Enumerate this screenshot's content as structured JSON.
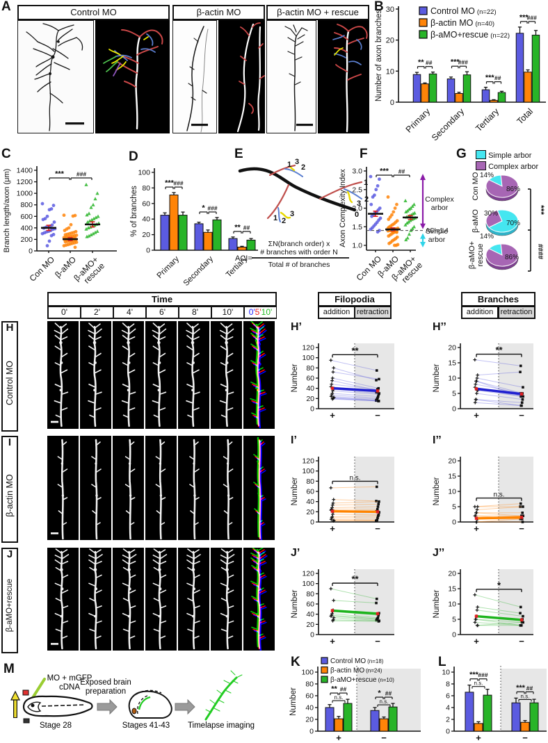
{
  "letters": {
    "A": "A",
    "B": "B",
    "C": "C",
    "D": "D",
    "E": "E",
    "F": "F",
    "G": "G",
    "K": "K",
    "L": "L",
    "M": "M"
  },
  "plot_labels": {
    "hp": "H’",
    "hpp": "H’’",
    "ip": "I’",
    "ipp": "I’’",
    "jp": "J’",
    "jpp": "J’’"
  },
  "colors": {
    "control": "#5b5be0",
    "bactin": "#ff8408",
    "rescue": "#28b428",
    "control_line": "#1f1fd0",
    "bactin_line": "#ff8400",
    "rescue_line": "#1eb41e",
    "simple_arbor": "#45e6f0",
    "complex_arbor": "#a766b4",
    "simple_side": "#2fb3c9",
    "complex_side": "#7d4090",
    "error_red": "#e02020",
    "time_blue": "#2222ff",
    "time_red": "#ee2222",
    "time_green": "#22bb22"
  },
  "panelA": {
    "groups": [
      {
        "title": "Control MO"
      },
      {
        "title": "β-actin MO"
      },
      {
        "title": "β-actin MO + rescue"
      }
    ]
  },
  "panelE": {
    "order_labels": [
      "0",
      "1",
      "2",
      "3"
    ],
    "formula_prefix": "ACI=",
    "formula_num1": "ΣN(branch order) x",
    "formula_num2": "# branches with order N",
    "formula_den": "Total # of branches"
  },
  "panelG": {
    "legend_simple": "Simple arbor",
    "legend_complex": "Complex arbor"
  },
  "timelapse": {
    "header": "Time",
    "times": [
      "0'",
      "2'",
      "4'",
      "6'",
      "8'",
      "10'"
    ],
    "composite": [
      {
        "t": "0'",
        "color": "#2222ff"
      },
      {
        "t": "5'",
        "color": "#ee2222"
      },
      {
        "t": "10'",
        "color": "#22bb22"
      }
    ],
    "filopodia": {
      "title": "Filopodia",
      "cols": [
        "addition",
        "retraction"
      ]
    },
    "branches": {
      "title": "Branches",
      "cols": [
        "addition",
        "retraction"
      ]
    },
    "rows": [
      {
        "letter": "H",
        "label": "Control MO"
      },
      {
        "letter": "I",
        "label": "β-actin MO"
      },
      {
        "letter": "J",
        "label": "β-aMO+rescue"
      }
    ]
  },
  "panelM": {
    "inj1": "MO + mGFP",
    "inj2": "cDNA",
    "stage1": "Stage 28",
    "arrow1a": "Exposed brain",
    "arrow1b": "preparation",
    "stage2": "Stages 41-43",
    "step3": "Timelapse imaging"
  },
  "chart_data": [
    {
      "id": "B",
      "type": "bar",
      "ylabel": "Number of axon branches",
      "ylim": [
        0,
        30
      ],
      "yticks": [
        0,
        10,
        20,
        30
      ],
      "categories": [
        "Primary",
        "Secondary",
        "Tertiary",
        "Total"
      ],
      "legend": [
        {
          "name": "Control MO",
          "n": "(n=22)"
        },
        {
          "name": "β-actin MO",
          "n": "(n=40)"
        },
        {
          "name": "β-aMO+rescue",
          "n": "(n=22)"
        }
      ],
      "series": [
        {
          "name": "Control MO",
          "values": [
            8.9,
            7.5,
            4.0,
            22.2
          ],
          "errors": [
            0.7,
            0.6,
            0.8,
            2.0
          ]
        },
        {
          "name": "β-actin MO",
          "values": [
            5.9,
            2.8,
            0.6,
            9.7
          ],
          "errors": [
            0.3,
            0.4,
            0.2,
            0.7
          ]
        },
        {
          "name": "β-aMO+rescue",
          "values": [
            9.1,
            8.8,
            3.1,
            21.6
          ],
          "errors": [
            0.6,
            1.0,
            0.4,
            1.5
          ]
        }
      ],
      "significance": [
        {
          "star": "**",
          "hash": "##"
        },
        {
          "star": "***",
          "hash": "###"
        },
        {
          "star": "***",
          "hash": "##"
        },
        {
          "star": "***",
          "hash": "###"
        }
      ]
    },
    {
      "id": "C",
      "type": "scatter",
      "ylabel": "Branch length/axon (μm)",
      "ylim": [
        0,
        1400
      ],
      "ytick_step": 200,
      "categories": [
        [
          "Con MO"
        ],
        [
          "β-aMO"
        ],
        [
          "β-aMO+",
          "rescue"
        ]
      ],
      "means": [
        400,
        205,
        460
      ],
      "sems": [
        45,
        25,
        45
      ],
      "significance": {
        "star": "***",
        "hash": "###"
      },
      "points": [
        [
          820,
          790,
          730,
          715,
          600,
          560,
          545,
          500,
          450,
          430,
          420,
          410,
          395,
          385,
          375,
          355,
          340,
          330,
          315,
          300,
          285,
          265,
          170,
          90
        ],
        [
          620,
          615,
          605,
          455,
          400,
          380,
          355,
          335,
          320,
          310,
          300,
          290,
          280,
          272,
          265,
          258,
          250,
          244,
          238,
          232,
          226,
          220,
          214,
          208,
          202,
          196,
          190,
          184,
          178,
          172,
          165,
          158,
          150,
          140,
          130,
          120,
          110,
          100,
          90,
          62
        ],
        [
          1150,
          1000,
          905,
          800,
          755,
          650,
          625,
          600,
          580,
          560,
          540,
          520,
          500,
          480,
          462,
          445,
          430,
          415,
          400,
          380,
          340,
          320,
          300,
          280,
          260,
          248
        ]
      ]
    },
    {
      "id": "D",
      "type": "bar",
      "ylabel": "% of branches",
      "ylim": [
        0,
        100
      ],
      "yticks": [
        0,
        20,
        40,
        60,
        80,
        100
      ],
      "categories": [
        "Primary",
        "Secondary",
        "Tertiary"
      ],
      "series": [
        {
          "name": "Control MO",
          "values": [
            45,
            34,
            15
          ],
          "errors": [
            3,
            2,
            2
          ]
        },
        {
          "name": "β-actin MO",
          "values": [
            71,
            23,
            4
          ],
          "errors": [
            3,
            3,
            1
          ]
        },
        {
          "name": "β-aMO+rescue",
          "values": [
            45,
            39,
            13
          ],
          "errors": [
            4,
            3,
            2
          ]
        }
      ],
      "significance": [
        {
          "star": "***",
          "hash": "###"
        },
        {
          "star": "*",
          "hash": "###"
        },
        {
          "star": "**",
          "hash": "##"
        }
      ]
    },
    {
      "id": "F",
      "type": "scatter",
      "ylabel": "Axon Complexity Index",
      "ylim": [
        1.0,
        3.0
      ],
      "yticks": [
        1.0,
        1.5,
        2.0,
        2.5,
        3.0
      ],
      "categories": [
        [
          "Con MO"
        ],
        [
          "β-aMO"
        ],
        [
          "β-aMO+",
          "rescue"
        ]
      ],
      "means": [
        1.85,
        1.43,
        1.75
      ],
      "sems": [
        0.07,
        0.04,
        0.05
      ],
      "significance": {
        "star": "***",
        "hash": "##"
      },
      "dashed_line": 1.4,
      "annotations": {
        "complex1": "Complex",
        "complex2": "arbor",
        "aci": "ACI=1.4",
        "simple1": "Simple",
        "simple2": "arbor"
      },
      "points": [
        [
          2.85,
          2.78,
          2.6,
          2.5,
          2.35,
          2.3,
          2.1,
          2.0,
          1.95,
          1.9,
          1.87,
          1.82,
          1.78,
          1.73,
          1.68,
          1.62,
          1.57,
          1.52,
          1.47,
          1.43,
          1.4,
          1.36
        ],
        [
          2.3,
          2.1,
          2.0,
          1.9,
          1.82,
          1.76,
          1.7,
          1.66,
          1.62,
          1.58,
          1.55,
          1.52,
          1.49,
          1.46,
          1.44,
          1.42,
          1.41,
          1.4,
          1.4,
          1.39,
          1.38,
          1.36,
          1.34,
          1.31,
          1.28,
          1.25,
          1.22,
          1.18,
          1.15,
          1.12,
          1.08,
          1.05,
          1.02,
          1.0,
          1.0,
          1.38,
          1.42,
          1.44,
          1.46,
          1.35
        ],
        [
          2.2,
          2.1,
          2.05,
          2.0,
          1.97,
          1.93,
          1.9,
          1.87,
          1.85,
          1.82,
          1.8,
          1.78,
          1.76,
          1.74,
          1.72,
          1.7,
          1.67,
          1.63,
          1.6,
          1.55,
          1.5,
          1.45,
          1.4,
          1.3,
          1.2,
          1.15
        ]
      ]
    },
    {
      "id": "G",
      "type": "pie",
      "pies": [
        {
          "label_lines": [
            "Con MO"
          ],
          "simple_pct": 14,
          "complex_pct": 86
        },
        {
          "label_lines": [
            "β-aMO"
          ],
          "simple_pct": 70,
          "complex_pct": 30
        },
        {
          "label_lines": [
            "β-aMO+",
            "rescue"
          ],
          "simple_pct": 14,
          "complex_pct": 86
        }
      ],
      "pct_labels": [
        {
          "a": "14%",
          "b": "86%"
        },
        {
          "a": "30%",
          "b": "70%"
        },
        {
          "a": "14%",
          "b": "86%"
        }
      ],
      "significance_top": "***",
      "significance_bottom": "####"
    },
    {
      "id": "H1",
      "type": "paired-line",
      "ylabel": "Number",
      "ylim": [
        0,
        120
      ],
      "ytick_step": 20,
      "xlabels": [
        "+",
        "−"
      ],
      "sig": "**",
      "color": "control",
      "pairs": [
        [
          95,
          75
        ],
        [
          80,
          56
        ],
        [
          72,
          58
        ],
        [
          60,
          40
        ],
        [
          55,
          36
        ],
        [
          48,
          38
        ],
        [
          43,
          34
        ],
        [
          40,
          32
        ],
        [
          38,
          30
        ],
        [
          35,
          28
        ],
        [
          30,
          24
        ],
        [
          27,
          21
        ],
        [
          24,
          19
        ],
        [
          22,
          17
        ],
        [
          21,
          16
        ],
        [
          20,
          15
        ],
        [
          19,
          15
        ]
      ],
      "mean": [
        40,
        35
      ]
    },
    {
      "id": "H2",
      "type": "paired-line",
      "ylabel": "Number",
      "ylim": [
        0,
        20
      ],
      "ytick_step": 5,
      "xlabels": [
        "+",
        "−"
      ],
      "sig": "**",
      "color": "control",
      "pairs": [
        [
          16,
          14
        ],
        [
          11,
          12
        ],
        [
          10,
          7
        ],
        [
          9,
          5
        ],
        [
          9,
          4
        ],
        [
          8,
          5
        ],
        [
          7,
          4
        ],
        [
          6,
          5
        ],
        [
          6,
          4
        ],
        [
          5,
          3
        ],
        [
          3,
          2
        ],
        [
          3,
          1
        ],
        [
          2,
          1
        ]
      ],
      "mean": [
        6.5,
        4.8
      ]
    },
    {
      "id": "I1",
      "type": "paired-line",
      "ylabel": "Number",
      "ylim": [
        0,
        120
      ],
      "ytick_step": 20,
      "xlabels": [
        "+",
        "−"
      ],
      "sig": "n.s.",
      "color": "bactin",
      "pairs": [
        [
          67,
          69
        ],
        [
          44,
          41
        ],
        [
          37,
          40
        ],
        [
          33,
          35
        ],
        [
          28,
          30
        ],
        [
          25,
          25
        ],
        [
          23,
          20
        ],
        [
          21,
          21
        ],
        [
          20,
          19
        ],
        [
          15,
          14
        ],
        [
          10,
          12
        ],
        [
          8,
          8
        ],
        [
          5,
          4
        ],
        [
          3,
          3
        ],
        [
          2,
          2
        ]
      ],
      "mean": [
        21,
        20
      ]
    },
    {
      "id": "I2",
      "type": "paired-line",
      "ylabel": "Number",
      "ylim": [
        0,
        20
      ],
      "ytick_step": 5,
      "xlabels": [
        "+",
        "−"
      ],
      "sig": "n.s.",
      "color": "bactin",
      "pairs": [
        [
          5,
          6
        ],
        [
          5,
          5
        ],
        [
          4,
          5
        ],
        [
          3,
          3
        ],
        [
          3,
          2
        ],
        [
          2,
          2
        ],
        [
          2,
          1
        ],
        [
          1,
          1
        ],
        [
          1,
          2
        ],
        [
          0,
          0
        ],
        [
          0,
          1
        ]
      ],
      "mean": [
        1.2,
        1.5
      ]
    },
    {
      "id": "J1",
      "type": "paired-line",
      "ylabel": "Number",
      "ylim": [
        0,
        120
      ],
      "ytick_step": 20,
      "xlabels": [
        "+",
        "−"
      ],
      "sig": "**",
      "color": "rescue",
      "pairs": [
        [
          90,
          70
        ],
        [
          67,
          62
        ],
        [
          48,
          42
        ],
        [
          45,
          38
        ],
        [
          41,
          33
        ],
        [
          38,
          31
        ],
        [
          36,
          30
        ],
        [
          33,
          28
        ],
        [
          29,
          27
        ],
        [
          27,
          26
        ]
      ],
      "mean": [
        47,
        41
      ]
    },
    {
      "id": "J2",
      "type": "paired-line",
      "ylabel": "Number",
      "ylim": [
        0,
        20
      ],
      "ytick_step": 5,
      "xlabels": [
        "+",
        "−"
      ],
      "sig": "*",
      "color": "rescue",
      "pairs": [
        [
          13,
          9
        ],
        [
          9,
          7
        ],
        [
          8,
          6
        ],
        [
          6,
          5
        ],
        [
          5,
          4
        ],
        [
          5,
          3
        ],
        [
          4,
          3
        ],
        [
          3,
          3
        ],
        [
          3,
          4
        ]
      ],
      "mean": [
        6,
        4.8
      ]
    },
    {
      "id": "K",
      "type": "bar-split",
      "ylabel": "Number",
      "ylim": [
        0,
        100
      ],
      "yticks": [
        0,
        20,
        40,
        60,
        80,
        100
      ],
      "groups": [
        "+",
        "−"
      ],
      "legend": [
        {
          "name": "Control MO",
          "n": "(n=18)"
        },
        {
          "name": "β-actin MO",
          "n": "(n=24)"
        },
        {
          "name": "β-aMO+rescue",
          "n": "(n=10)"
        }
      ],
      "series": [
        {
          "name": "Control MO",
          "values": [
            40,
            35
          ],
          "errors": [
            5,
            5
          ]
        },
        {
          "name": "β-actin MO",
          "values": [
            21,
            21
          ],
          "errors": [
            4,
            3
          ]
        },
        {
          "name": "β-aMO+rescue",
          "values": [
            47,
            41
          ],
          "errors": [
            7,
            6
          ]
        }
      ],
      "significance": [
        {
          "star": "**",
          "hash": "##",
          "ns": "n.s."
        },
        {
          "star": "*",
          "hash": "##",
          "ns": "n.s."
        }
      ]
    },
    {
      "id": "L",
      "type": "bar-split",
      "ylabel": "Number",
      "ylim": [
        0,
        10
      ],
      "yticks": [
        0,
        2,
        4,
        6,
        8,
        10
      ],
      "groups": [
        "+",
        "−"
      ],
      "series": [
        {
          "name": "Control MO",
          "values": [
            6.6,
            4.8
          ],
          "errors": [
            1.2,
            0.8
          ]
        },
        {
          "name": "β-actin MO",
          "values": [
            1.3,
            1.5
          ],
          "errors": [
            0.3,
            0.3
          ]
        },
        {
          "name": "β-aMO+rescue",
          "values": [
            6.1,
            4.8
          ],
          "errors": [
            1.0,
            0.6
          ]
        }
      ],
      "significance": [
        {
          "star": "***",
          "hash": "###",
          "ns": "n.s."
        },
        {
          "star": "***",
          "hash": "##",
          "ns": "n.s."
        }
      ]
    }
  ]
}
